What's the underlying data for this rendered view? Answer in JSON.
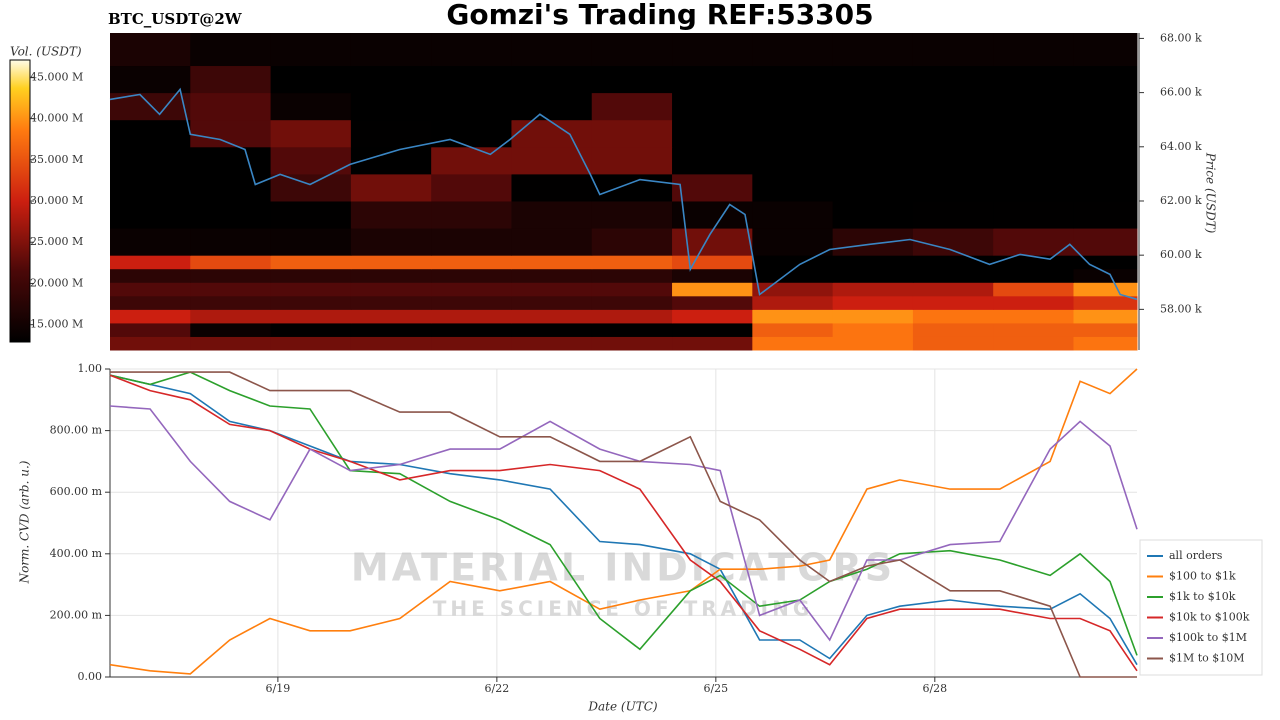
{
  "title": "Gomzi's Trading REF:53305",
  "chart_data": [
    {
      "type": "heatmap",
      "label": "BTC_USDT@2W",
      "colorbar_label": "Vol. (USDT)",
      "ylabel": "Price (USDT)",
      "clim": [
        12.9,
        47.1
      ],
      "cticks": [
        {
          "value": 15,
          "label": "15.000 M"
        },
        {
          "value": 20,
          "label": "20.000 M"
        },
        {
          "value": 25,
          "label": "25.000 M"
        },
        {
          "value": 30,
          "label": "30.000 M"
        },
        {
          "value": 35,
          "label": "35.000 M"
        },
        {
          "value": 40,
          "label": "40.000 M"
        },
        {
          "value": 45,
          "label": "45.000 M"
        }
      ],
      "xlim": [
        16.7,
        30.77
      ],
      "ylim": [
        56.5,
        68.2
      ],
      "yticks": [
        {
          "value": 58,
          "label": "58.00 k"
        },
        {
          "value": 60,
          "label": "60.00 k"
        },
        {
          "value": 62,
          "label": "62.00 k"
        },
        {
          "value": 64,
          "label": "64.00 k"
        },
        {
          "value": 66,
          "label": "66.00 k"
        },
        {
          "value": 68,
          "label": "68.00 k"
        }
      ],
      "xbins": [
        16.7,
        17.8,
        18.9,
        20,
        21.1,
        22.2,
        23.3,
        24.4,
        25.5,
        26.6,
        27.7,
        28.8,
        29.9,
        30.77
      ],
      "ybins": [
        56.5,
        57,
        57.5,
        58,
        58.5,
        59,
        59.5,
        60,
        61,
        62,
        63,
        64,
        65,
        66,
        67,
        68.2
      ],
      "values": [
        [
          24,
          24,
          24,
          24,
          24,
          24,
          24,
          24,
          38,
          38,
          36,
          36,
          38
        ],
        [
          22,
          14,
          13,
          13,
          13,
          13,
          13,
          13,
          36,
          38,
          36,
          36,
          36
        ],
        [
          30,
          28,
          28,
          28,
          28,
          28,
          28,
          30,
          40,
          40,
          38,
          38,
          40
        ],
        [
          20,
          20,
          20,
          20,
          20,
          20,
          20,
          22,
          28,
          30,
          30,
          30,
          32
        ],
        [
          22,
          22,
          22,
          22,
          22,
          22,
          22,
          40,
          26,
          28,
          28,
          34,
          40
        ],
        [
          18,
          18,
          18,
          18,
          18,
          18,
          18,
          16,
          12,
          12,
          12,
          12,
          14
        ],
        [
          30,
          34,
          36,
          36,
          36,
          36,
          36,
          34,
          12,
          12,
          12,
          12,
          12
        ],
        [
          14,
          14,
          14,
          16,
          16,
          16,
          18,
          24,
          14,
          18,
          20,
          22,
          22
        ],
        [
          12,
          12,
          13,
          18,
          18,
          16,
          16,
          14,
          14,
          12,
          13,
          13,
          13
        ],
        [
          12,
          12,
          20,
          24,
          22,
          13,
          12,
          22,
          12,
          12,
          12,
          12,
          12
        ],
        [
          12,
          12,
          22,
          12,
          24,
          24,
          24,
          12,
          12,
          12,
          12,
          12,
          12
        ],
        [
          12,
          22,
          24,
          13,
          12,
          24,
          24,
          12,
          12,
          12,
          12,
          12,
          12
        ],
        [
          20,
          22,
          14,
          12,
          12,
          12,
          22,
          12,
          12,
          12,
          12,
          12,
          12
        ],
        [
          14,
          20,
          12,
          12,
          12,
          12,
          12,
          12,
          12,
          12,
          12,
          12,
          12
        ],
        [
          16,
          14,
          14,
          14,
          14,
          14,
          14,
          14,
          14,
          14,
          14,
          14,
          14
        ]
      ],
      "series": [
        {
          "color": "#3a86c4",
          "x": [
            16.7,
            17.11,
            17.38,
            17.66,
            17.8,
            18.21,
            18.55,
            18.69,
            19.03,
            19.44,
            19.99,
            20.67,
            21.36,
            21.91,
            22.18,
            22.59,
            23.0,
            23.28,
            23.41,
            23.96,
            24.51,
            24.65,
            24.92,
            25.19,
            25.4,
            25.6,
            26.15,
            26.56,
            27.11,
            27.66,
            28.21,
            28.75,
            29.17,
            29.58,
            29.85,
            30.12,
            30.4,
            30.54,
            30.77
          ],
          "values": [
            65.75,
            65.93,
            65.2,
            66.12,
            64.46,
            64.27,
            63.9,
            62.61,
            62.98,
            62.61,
            63.35,
            63.9,
            64.27,
            63.72,
            64.27,
            65.2,
            64.46,
            62.98,
            62.24,
            62.79,
            62.61,
            59.48,
            60.77,
            61.87,
            61.5,
            58.55,
            59.66,
            60.21,
            60.4,
            60.58,
            60.21,
            59.66,
            60.03,
            59.85,
            60.4,
            59.66,
            59.29,
            58.55,
            58.37
          ]
        }
      ]
    },
    {
      "type": "line",
      "xlabel": "Date (UTC)",
      "ylabel": "Norm. CVD (arb. u.)",
      "grid": true,
      "legend": "right",
      "watermark": [
        "MATERIAL INDICATORS",
        "THE SCIENCE OF TRADING"
      ],
      "xlim": [
        16.7,
        30.77
      ],
      "xticks": [
        {
          "value": 19,
          "label": "6/19"
        },
        {
          "value": 22,
          "label": "6/22"
        },
        {
          "value": 25,
          "label": "6/25"
        },
        {
          "value": 28,
          "label": "6/28"
        }
      ],
      "ylim": [
        0,
        1
      ],
      "yticks": [
        {
          "value": 0,
          "label": "0.00"
        },
        {
          "value": 0.2,
          "label": "200.00 m"
        },
        {
          "value": 0.4,
          "label": "400.00 m"
        },
        {
          "value": 0.6,
          "label": "600.00 m"
        },
        {
          "value": 0.8,
          "label": "800.00 m"
        },
        {
          "value": 1,
          "label": "1.00"
        }
      ],
      "x": [
        16.7,
        17.25,
        17.8,
        18.34,
        18.89,
        19.44,
        19.99,
        20.67,
        21.36,
        22.04,
        22.73,
        23.41,
        23.96,
        24.65,
        25.06,
        25.6,
        26.15,
        26.56,
        27.07,
        27.52,
        28.21,
        28.89,
        29.58,
        29.99,
        30.4,
        30.77
      ],
      "series": [
        {
          "name": "all orders",
          "color": "#1f77b4",
          "values": [
            0.98,
            0.95,
            0.92,
            0.83,
            0.8,
            0.75,
            0.7,
            0.69,
            0.66,
            0.64,
            0.61,
            0.44,
            0.43,
            0.4,
            0.35,
            0.12,
            0.12,
            0.06,
            0.2,
            0.23,
            0.25,
            0.23,
            0.22,
            0.27,
            0.19,
            0.04
          ]
        },
        {
          "name": "$100 to $1k",
          "color": "#ff7f0e",
          "values": [
            0.04,
            0.02,
            0.01,
            0.12,
            0.19,
            0.15,
            0.15,
            0.19,
            0.31,
            0.28,
            0.31,
            0.22,
            0.25,
            0.28,
            0.35,
            0.35,
            0.36,
            0.38,
            0.61,
            0.64,
            0.61,
            0.61,
            0.7,
            0.96,
            0.92,
            1.0
          ]
        },
        {
          "name": "$1k to $10k",
          "color": "#2ca02c",
          "values": [
            0.98,
            0.95,
            0.99,
            0.93,
            0.88,
            0.87,
            0.67,
            0.66,
            0.57,
            0.51,
            0.43,
            0.19,
            0.09,
            0.28,
            0.33,
            0.23,
            0.25,
            0.31,
            0.35,
            0.4,
            0.41,
            0.38,
            0.33,
            0.4,
            0.31,
            0.07
          ]
        },
        {
          "name": "$10k to $100k",
          "color": "#d62728",
          "values": [
            0.98,
            0.93,
            0.9,
            0.82,
            0.8,
            0.74,
            0.7,
            0.64,
            0.67,
            0.67,
            0.69,
            0.67,
            0.61,
            0.38,
            0.31,
            0.15,
            0.09,
            0.04,
            0.19,
            0.22,
            0.22,
            0.22,
            0.19,
            0.19,
            0.15,
            0.02
          ]
        },
        {
          "name": "$100k to $1M",
          "color": "#9467bd",
          "values": [
            0.88,
            0.87,
            0.7,
            0.57,
            0.51,
            0.74,
            0.67,
            0.69,
            0.74,
            0.74,
            0.83,
            0.74,
            0.7,
            0.69,
            0.67,
            0.2,
            0.25,
            0.12,
            0.38,
            0.38,
            0.43,
            0.44,
            0.74,
            0.83,
            0.75,
            0.48
          ]
        },
        {
          "name": "$1M to $10M",
          "color": "#8c564b",
          "values": [
            0.99,
            0.99,
            0.99,
            0.99,
            0.93,
            0.93,
            0.93,
            0.86,
            0.86,
            0.78,
            0.78,
            0.7,
            0.7,
            0.78,
            0.57,
            0.51,
            0.38,
            0.31,
            0.36,
            0.38,
            0.28,
            0.28,
            0.23,
            0,
            0,
            0
          ]
        }
      ]
    }
  ]
}
